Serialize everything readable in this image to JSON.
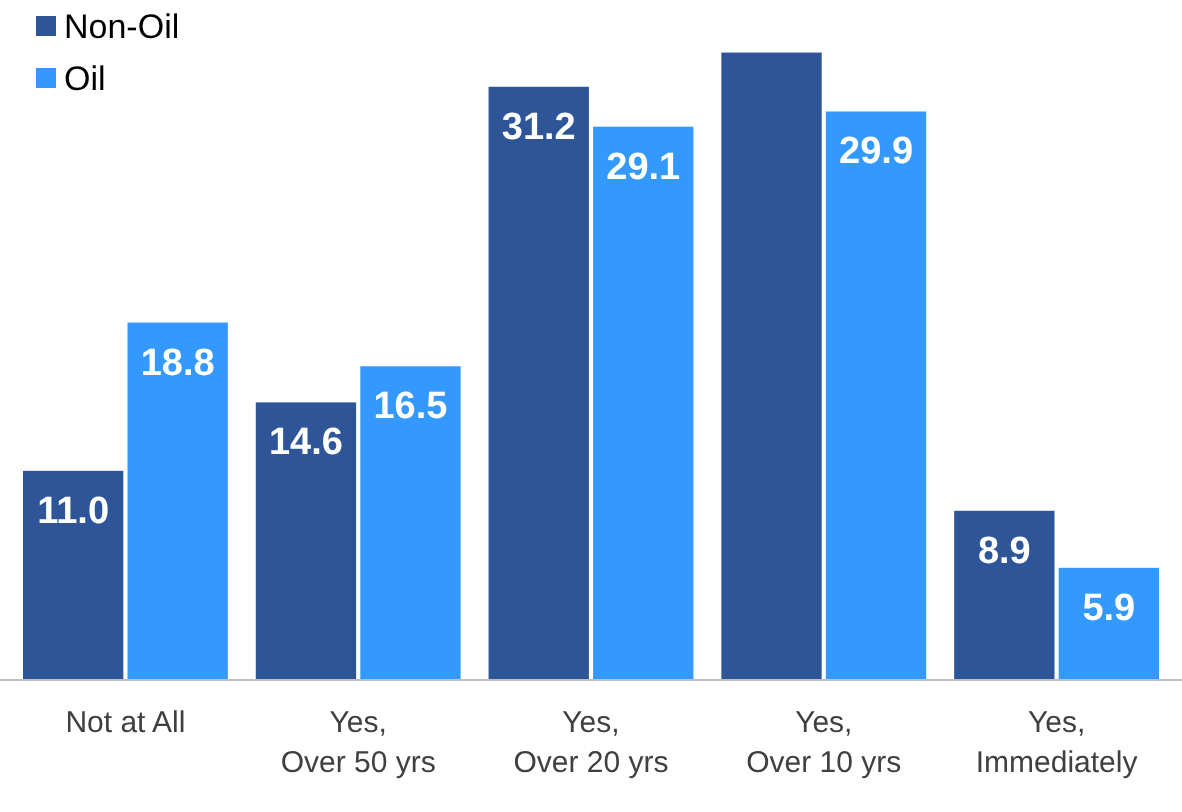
{
  "chart_data": {
    "type": "bar",
    "categories": [
      "Not at All",
      "Yes,\nOver 50 yrs",
      "Yes,\nOver 20 yrs",
      "Yes,\nOver 10 yrs",
      "Yes,\nImmediately"
    ],
    "series": [
      {
        "name": "Non-Oil",
        "color": "#2e5597",
        "values": [
          11.0,
          14.6,
          31.2,
          33,
          8.9
        ],
        "value_labels": [
          "11.0",
          "14.6",
          "31.2",
          null,
          "8.9"
        ]
      },
      {
        "name": "Oil",
        "color": "#3399ff",
        "values": [
          18.8,
          16.5,
          29.1,
          29.9,
          5.9
        ],
        "value_labels": [
          "18.8",
          "16.5",
          "29.1",
          "29.9",
          "5.9"
        ]
      }
    ],
    "legend": "top left"
  }
}
